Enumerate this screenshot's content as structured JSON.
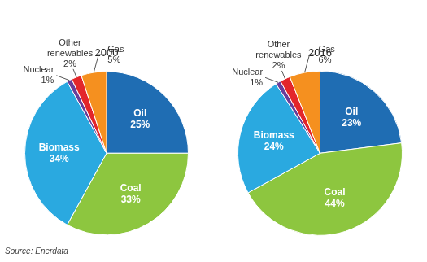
{
  "chart_data": [
    {
      "type": "pie",
      "title": "2000",
      "categories": [
        "Oil",
        "Coal",
        "Biomass",
        "Nuclear",
        "Other renewables",
        "Gas"
      ],
      "values": [
        25,
        33,
        34,
        1,
        2,
        5
      ],
      "value_labels": [
        "25%",
        "33%",
        "34%",
        "1%",
        "2%",
        "5%"
      ],
      "colors": [
        "#1f6db3",
        "#8dc63f",
        "#2aa9e0",
        "#6a3d9a",
        "#e3262b",
        "#f5901f"
      ],
      "data_labels": true,
      "legend": false
    },
    {
      "type": "pie",
      "title": "2016",
      "categories": [
        "Oil",
        "Coal",
        "Biomass",
        "Nuclear",
        "Other renewables",
        "Gas"
      ],
      "values": [
        23,
        44,
        24,
        1,
        2,
        6
      ],
      "value_labels": [
        "23%",
        "44%",
        "24%",
        "1%",
        "2%",
        "6%"
      ],
      "colors": [
        "#1f6db3",
        "#8dc63f",
        "#2aa9e0",
        "#6a3d9a",
        "#e3262b",
        "#f5901f"
      ],
      "data_labels": true,
      "legend": false
    }
  ],
  "source": "Source: Enerdata"
}
